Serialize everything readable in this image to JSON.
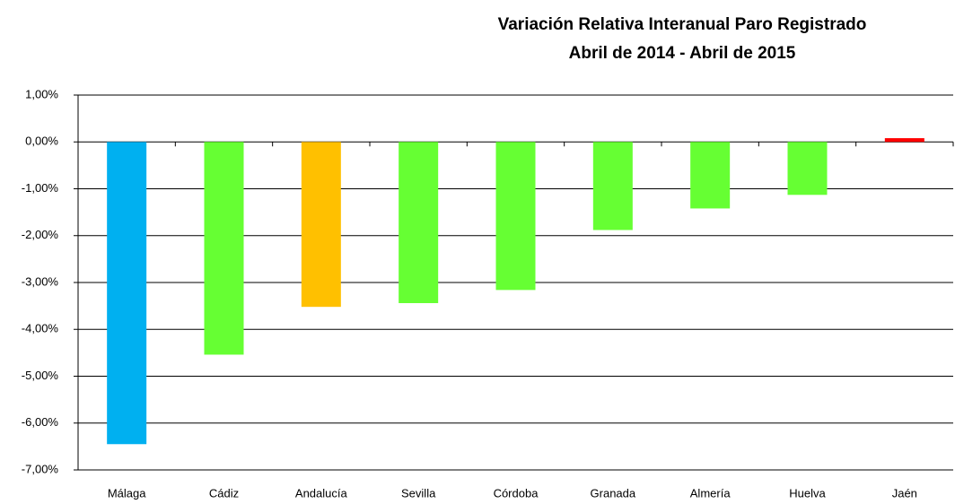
{
  "chart_data": {
    "type": "bar",
    "title": "Variación Relativa Interanual Paro Registrado",
    "subtitle": "Abril de 2014 - Abril de 2015",
    "categories": [
      "Málaga",
      "Cádiz",
      "Andalucía",
      "Sevilla",
      "Córdoba",
      "Granada",
      "Almería",
      "Huelva",
      "Jaén"
    ],
    "values": [
      -6.45,
      -4.54,
      -3.52,
      -3.44,
      -3.16,
      -1.88,
      -1.42,
      -1.13,
      0.08
    ],
    "colors": [
      "#00b0f0",
      "#66ff33",
      "#ffc000",
      "#66ff33",
      "#66ff33",
      "#66ff33",
      "#66ff33",
      "#66ff33",
      "#ff0000"
    ],
    "ylim": [
      -7,
      1
    ],
    "yticks": [
      {
        "value": 1,
        "label": "1,00%"
      },
      {
        "value": 0,
        "label": "0,00%"
      },
      {
        "value": -1,
        "label": "-1,00%"
      },
      {
        "value": -2,
        "label": "-2,00%"
      },
      {
        "value": -3,
        "label": "-3,00%"
      },
      {
        "value": -4,
        "label": "-4,00%"
      },
      {
        "value": -5,
        "label": "-5,00%"
      },
      {
        "value": -6,
        "label": "-6,00%"
      },
      {
        "value": -7,
        "label": "-7,00%"
      }
    ],
    "grid": true
  }
}
